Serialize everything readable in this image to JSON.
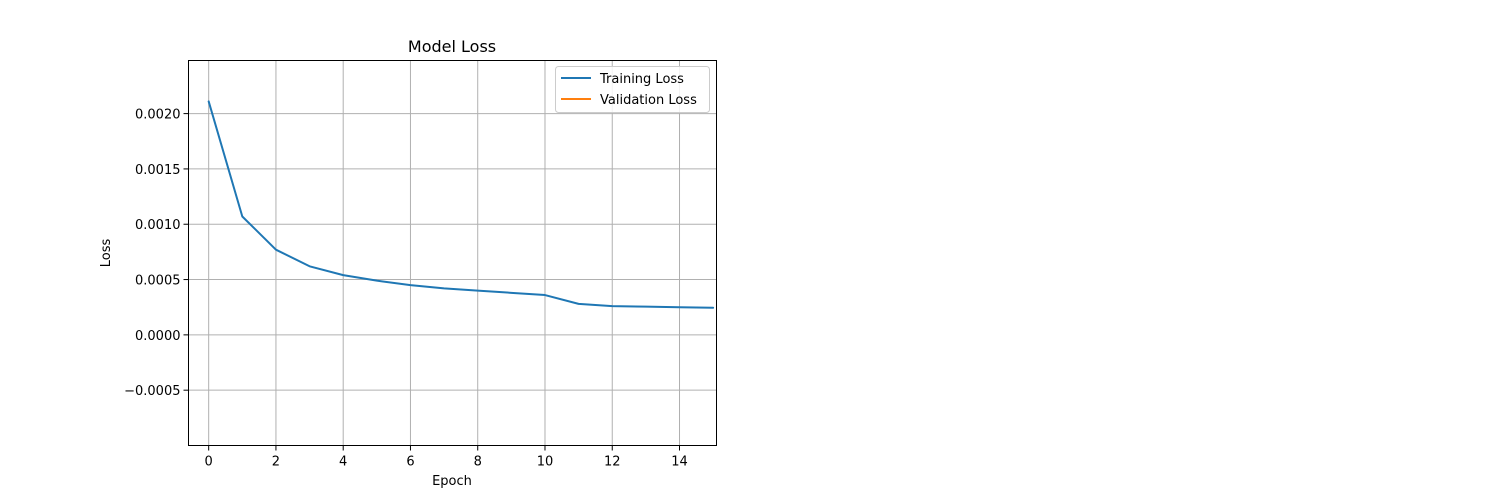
{
  "chart_data": {
    "type": "line",
    "title": "Model Loss",
    "xlabel": "Epoch",
    "ylabel": "Loss",
    "xlim": [
      -0.6,
      15.1
    ],
    "ylim": [
      -0.001,
      0.00248
    ],
    "xticks": [
      0,
      2,
      4,
      6,
      8,
      10,
      12,
      14
    ],
    "xtick_labels": [
      "0",
      "2",
      "4",
      "6",
      "8",
      "10",
      "12",
      "14"
    ],
    "yticks": [
      -0.0005,
      0.0,
      0.0005,
      0.001,
      0.0015,
      0.002
    ],
    "ytick_labels": [
      "−0.0005",
      "0.0000",
      "0.0005",
      "0.0010",
      "0.0015",
      "0.0020"
    ],
    "grid": true,
    "legend_position": "top-right",
    "series": [
      {
        "name": "Training Loss",
        "color": "#1f77b4",
        "x": [
          0,
          1,
          2,
          3,
          4,
          5,
          6,
          7,
          8,
          9,
          10,
          11,
          12,
          13,
          14,
          15
        ],
        "y": [
          0.00211,
          0.00107,
          0.00077,
          0.00062,
          0.00054,
          0.00049,
          0.00045,
          0.00042,
          0.0004,
          0.00038,
          0.00036,
          0.00028,
          0.00026,
          0.000255,
          0.00025,
          0.000245
        ]
      },
      {
        "name": "Validation Loss",
        "color": "#ff7f0e",
        "x": [],
        "y": []
      }
    ]
  }
}
